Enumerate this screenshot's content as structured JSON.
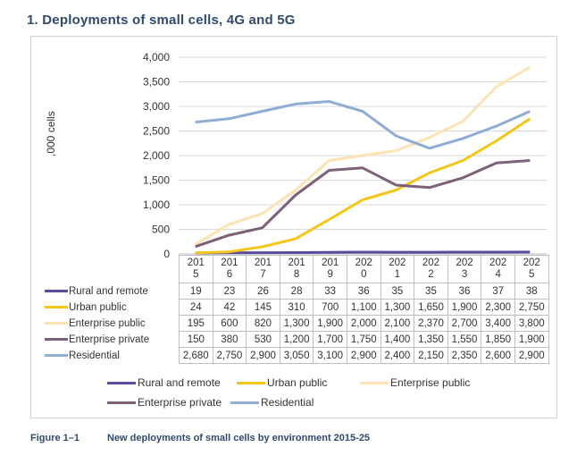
{
  "heading": "1.  Deployments of small cells, 4G and 5G",
  "caption": {
    "figure": "Figure 1–1",
    "text": "New deployments of small cells by environment 2015-25"
  },
  "chart_data": {
    "type": "line",
    "ylabel": ",000 cells",
    "ylim": [
      0,
      4000
    ],
    "yticks": [
      "0",
      "500",
      "1,000",
      "1,500",
      "2,000",
      "2,500",
      "3,000",
      "3,500",
      "4,000"
    ],
    "ytick_values": [
      0,
      500,
      1000,
      1500,
      2000,
      2500,
      3000,
      3500,
      4000
    ],
    "x": [
      2015,
      2016,
      2017,
      2018,
      2019,
      2020,
      2021,
      2022,
      2023,
      2024,
      2025
    ],
    "x_labels": [
      [
        "201",
        "5"
      ],
      [
        "201",
        "6"
      ],
      [
        "201",
        "7"
      ],
      [
        "201",
        "8"
      ],
      [
        "201",
        "9"
      ],
      [
        "202",
        "0"
      ],
      [
        "202",
        "1"
      ],
      [
        "202",
        "2"
      ],
      [
        "202",
        "3"
      ],
      [
        "202",
        "4"
      ],
      [
        "202",
        "5"
      ]
    ],
    "grid": "horizontal",
    "series": [
      {
        "name": "Rural and remote",
        "color": "#5b4b9f",
        "values": [
          19,
          23,
          26,
          28,
          33,
          36,
          35,
          35,
          36,
          37,
          38
        ],
        "labels": [
          "19",
          "23",
          "26",
          "28",
          "33",
          "36",
          "35",
          "35",
          "36",
          "37",
          "38"
        ]
      },
      {
        "name": "Urban public",
        "color": "#f5c518",
        "values": [
          24,
          42,
          145,
          310,
          700,
          1100,
          1300,
          1650,
          1900,
          2300,
          2750
        ],
        "labels": [
          "24",
          "42",
          "145",
          "310",
          "700",
          "1,100",
          "1,300",
          "1,650",
          "1,900",
          "2,300",
          "2,750"
        ]
      },
      {
        "name": "Enterprise public",
        "color": "#fbe3b3",
        "values": [
          195,
          600,
          820,
          1300,
          1900,
          2000,
          2100,
          2370,
          2700,
          3400,
          3800
        ],
        "labels": [
          "195",
          "600",
          "820",
          "1,300",
          "1,900",
          "2,000",
          "2,100",
          "2,370",
          "2,700",
          "3,400",
          "3,800"
        ]
      },
      {
        "name": "Enterprise private",
        "color": "#7d6179",
        "values": [
          150,
          380,
          530,
          1200,
          1700,
          1750,
          1400,
          1350,
          1550,
          1850,
          1900
        ],
        "labels": [
          "150",
          "380",
          "530",
          "1,200",
          "1,700",
          "1,750",
          "1,400",
          "1,350",
          "1,550",
          "1,850",
          "1,900"
        ]
      },
      {
        "name": "Residential",
        "color": "#8fadd3",
        "values": [
          2680,
          2750,
          2900,
          3050,
          3100,
          2900,
          2400,
          2150,
          2350,
          2600,
          2900
        ],
        "labels": [
          "2,680",
          "2,750",
          "2,900",
          "3,050",
          "3,100",
          "2,900",
          "2,400",
          "2,150",
          "2,350",
          "2,600",
          "2,900"
        ]
      }
    ],
    "legend": {
      "position": "bottom"
    }
  }
}
